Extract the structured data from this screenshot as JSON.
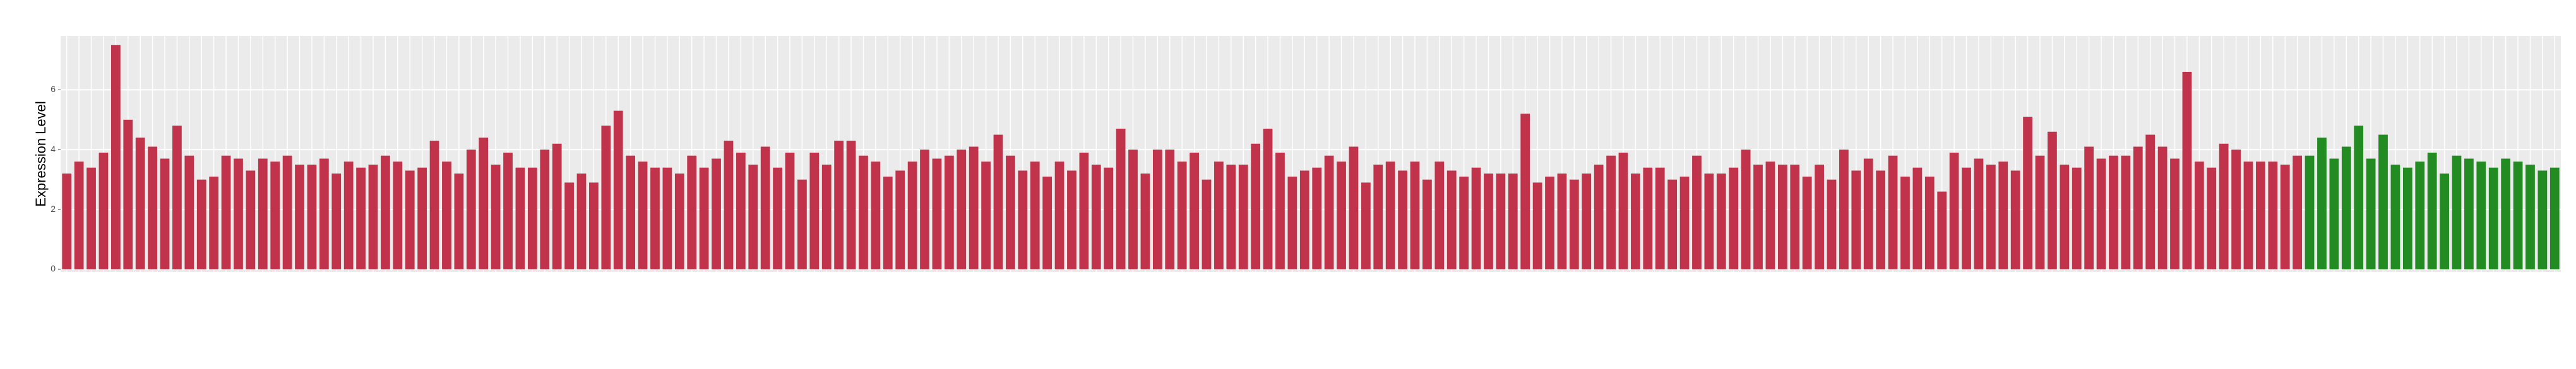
{
  "chart_data": {
    "type": "bar",
    "ylabel": "Expression Level",
    "ylim": [
      0,
      7.8
    ],
    "yticks": [
      0,
      2,
      4,
      6
    ],
    "grid": true,
    "values": [
      3.2,
      3.6,
      3.4,
      3.9,
      7.5,
      5.0,
      4.4,
      4.1,
      3.7,
      4.8,
      3.8,
      3.0,
      3.1,
      3.8,
      3.7,
      3.3,
      3.7,
      3.6,
      3.8,
      3.5,
      3.5,
      3.7,
      3.2,
      3.6,
      3.4,
      3.5,
      3.8,
      3.6,
      3.3,
      3.4,
      4.3,
      3.6,
      3.2,
      4.0,
      4.4,
      3.5,
      3.9,
      3.4,
      3.4,
      4.0,
      4.2,
      2.9,
      3.2,
      2.9,
      4.8,
      5.3,
      3.8,
      3.6,
      3.4,
      3.4,
      3.2,
      3.8,
      3.4,
      3.7,
      4.3,
      3.9,
      3.5,
      4.1,
      3.4,
      3.9,
      3.0,
      3.9,
      3.5,
      4.3,
      4.3,
      3.8,
      3.6,
      3.1,
      3.3,
      3.6,
      4.0,
      3.7,
      3.8,
      4.0,
      4.1,
      3.6,
      4.5,
      3.8,
      3.3,
      3.6,
      3.1,
      3.6,
      3.3,
      3.9,
      3.5,
      3.4,
      4.7,
      4.0,
      3.2,
      4.0,
      4.0,
      3.6,
      3.9,
      3.0,
      3.6,
      3.5,
      3.5,
      4.2,
      4.7,
      3.9,
      3.1,
      3.3,
      3.4,
      3.8,
      3.6,
      4.1,
      2.9,
      3.5,
      3.6,
      3.3,
      3.6,
      3.0,
      3.6,
      3.3,
      3.1,
      3.4,
      3.2,
      3.2,
      3.2,
      5.2,
      2.9,
      3.1,
      3.2,
      3.0,
      3.2,
      3.5,
      3.8,
      3.9,
      3.2,
      3.4,
      3.4,
      3.0,
      3.1,
      3.8,
      3.2,
      3.2,
      3.4,
      4.0,
      3.5,
      3.6,
      3.5,
      3.5,
      3.1,
      3.5,
      3.0,
      4.0,
      3.3,
      3.7,
      3.3,
      3.8,
      3.1,
      3.4,
      3.1,
      2.6,
      3.9,
      3.4,
      3.7,
      3.5,
      3.6,
      3.3,
      5.1,
      3.8,
      4.6,
      3.5,
      3.4,
      4.1,
      3.7,
      3.8,
      3.8,
      4.1,
      4.5,
      4.1,
      3.7,
      6.6,
      3.6,
      3.4,
      4.2,
      4.0,
      3.6,
      3.6,
      3.6,
      3.5,
      3.8,
      3.8,
      4.4,
      3.7,
      4.1,
      4.8,
      3.7,
      4.5,
      3.5,
      3.4,
      3.6,
      3.9,
      3.2,
      3.8,
      3.7,
      3.6,
      3.4,
      3.7,
      3.6,
      3.5,
      3.3,
      3.4
    ],
    "colors": [
      "#c0334a",
      "#c0334a",
      "#c0334a",
      "#c0334a",
      "#c0334a",
      "#c0334a",
      "#c0334a",
      "#c0334a",
      "#c0334a",
      "#c0334a",
      "#c0334a",
      "#c0334a",
      "#c0334a",
      "#c0334a",
      "#c0334a",
      "#c0334a",
      "#c0334a",
      "#c0334a",
      "#c0334a",
      "#c0334a",
      "#c0334a",
      "#c0334a",
      "#c0334a",
      "#c0334a",
      "#c0334a",
      "#c0334a",
      "#c0334a",
      "#c0334a",
      "#c0334a",
      "#c0334a",
      "#c0334a",
      "#c0334a",
      "#c0334a",
      "#c0334a",
      "#c0334a",
      "#c0334a",
      "#c0334a",
      "#c0334a",
      "#c0334a",
      "#c0334a",
      "#c0334a",
      "#c0334a",
      "#c0334a",
      "#c0334a",
      "#c0334a",
      "#c0334a",
      "#c0334a",
      "#c0334a",
      "#c0334a",
      "#c0334a",
      "#c0334a",
      "#c0334a",
      "#c0334a",
      "#c0334a",
      "#c0334a",
      "#c0334a",
      "#c0334a",
      "#c0334a",
      "#c0334a",
      "#c0334a",
      "#c0334a",
      "#c0334a",
      "#c0334a",
      "#c0334a",
      "#c0334a",
      "#c0334a",
      "#c0334a",
      "#c0334a",
      "#c0334a",
      "#c0334a",
      "#c0334a",
      "#c0334a",
      "#c0334a",
      "#c0334a",
      "#c0334a",
      "#c0334a",
      "#c0334a",
      "#c0334a",
      "#c0334a",
      "#c0334a",
      "#c0334a",
      "#c0334a",
      "#c0334a",
      "#c0334a",
      "#c0334a",
      "#c0334a",
      "#c0334a",
      "#c0334a",
      "#c0334a",
      "#c0334a",
      "#c0334a",
      "#c0334a",
      "#c0334a",
      "#c0334a",
      "#c0334a",
      "#c0334a",
      "#c0334a",
      "#c0334a",
      "#c0334a",
      "#c0334a",
      "#c0334a",
      "#c0334a",
      "#c0334a",
      "#c0334a",
      "#c0334a",
      "#c0334a",
      "#c0334a",
      "#c0334a",
      "#c0334a",
      "#c0334a",
      "#c0334a",
      "#c0334a",
      "#c0334a",
      "#c0334a",
      "#c0334a",
      "#c0334a",
      "#c0334a",
      "#c0334a",
      "#c0334a",
      "#c0334a",
      "#c0334a",
      "#c0334a",
      "#c0334a",
      "#c0334a",
      "#c0334a",
      "#c0334a",
      "#c0334a",
      "#c0334a",
      "#c0334a",
      "#c0334a",
      "#c0334a",
      "#c0334a",
      "#c0334a",
      "#c0334a",
      "#c0334a",
      "#c0334a",
      "#c0334a",
      "#c0334a",
      "#c0334a",
      "#c0334a",
      "#c0334a",
      "#c0334a",
      "#c0334a",
      "#c0334a",
      "#c0334a",
      "#c0334a",
      "#c0334a",
      "#c0334a",
      "#c0334a",
      "#c0334a",
      "#c0334a",
      "#c0334a",
      "#c0334a",
      "#c0334a",
      "#c0334a",
      "#c0334a",
      "#c0334a",
      "#c0334a",
      "#c0334a",
      "#c0334a",
      "#c0334a",
      "#c0334a",
      "#c0334a",
      "#c0334a",
      "#c0334a",
      "#c0334a",
      "#c0334a",
      "#c0334a",
      "#c0334a",
      "#c0334a",
      "#c0334a",
      "#c0334a",
      "#c0334a",
      "#c0334a",
      "#c0334a",
      "#c0334a",
      "#c0334a",
      "#c0334a",
      "#c0334a",
      "#c0334a",
      "#c0334a",
      "#c0334a",
      "#c0334a",
      "#228b22",
      "#228b22",
      "#228b22",
      "#228b22",
      "#228b22",
      "#228b22",
      "#228b22",
      "#228b22",
      "#228b22",
      "#228b22",
      "#228b22",
      "#228b22",
      "#228b22",
      "#228b22",
      "#228b22",
      "#228b22",
      "#228b22",
      "#228b22",
      "#228b22",
      "#228b22",
      "#228b22"
    ]
  }
}
